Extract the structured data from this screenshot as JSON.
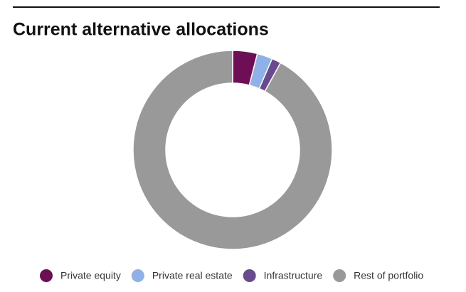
{
  "chart_data": {
    "type": "donut",
    "title": "Current alternative allocations",
    "categories": [
      "Private equity",
      "Private real estate",
      "Infrastructure",
      "Rest of portfolio"
    ],
    "values": [
      4,
      2.5,
      1.5,
      92
    ],
    "colors": [
      "#6e0f55",
      "#8fb1ea",
      "#6a4a8e",
      "#999999"
    ]
  }
}
